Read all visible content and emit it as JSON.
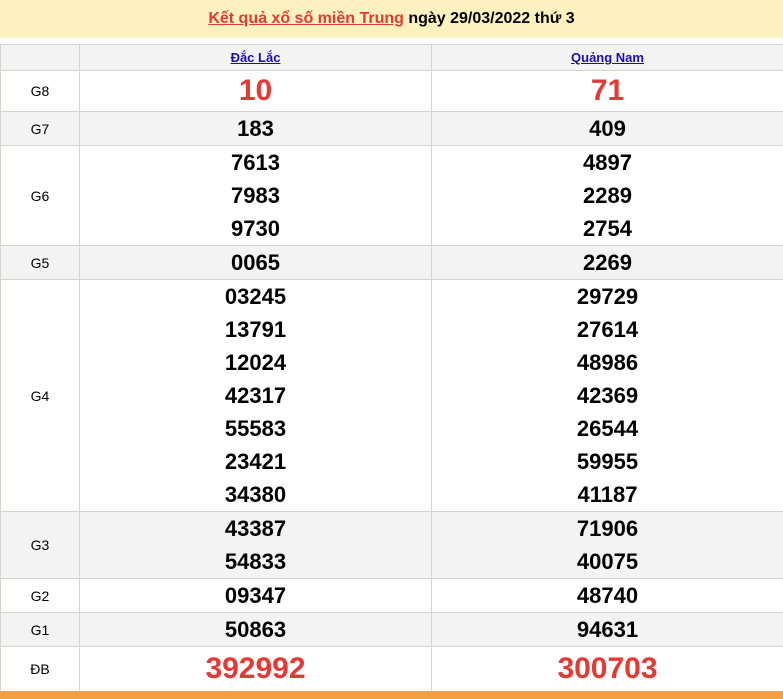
{
  "title": {
    "link": "Kết quả xổ số miền Trung",
    "rest": " ngày 29/03/2022 thứ 3"
  },
  "columns": [
    "Đắc Lắc",
    "Quảng Nam"
  ],
  "rows": [
    {
      "label": "G8",
      "big": true,
      "alt": false,
      "cols": [
        [
          "10"
        ],
        [
          "71"
        ]
      ]
    },
    {
      "label": "G7",
      "alt": true,
      "cols": [
        [
          "183"
        ],
        [
          "409"
        ]
      ]
    },
    {
      "label": "G6",
      "alt": false,
      "cols": [
        [
          "7613",
          "7983",
          "9730"
        ],
        [
          "4897",
          "2289",
          "2754"
        ]
      ]
    },
    {
      "label": "G5",
      "alt": true,
      "cols": [
        [
          "0065"
        ],
        [
          "2269"
        ]
      ]
    },
    {
      "label": "G4",
      "alt": false,
      "cols": [
        [
          "03245",
          "13791",
          "12024",
          "42317",
          "55583",
          "23421",
          "34380"
        ],
        [
          "29729",
          "27614",
          "48986",
          "42369",
          "26544",
          "59955",
          "41187"
        ]
      ]
    },
    {
      "label": "G3",
      "alt": true,
      "cols": [
        [
          "43387",
          "54833"
        ],
        [
          "71906",
          "40075"
        ]
      ]
    },
    {
      "label": "G2",
      "alt": false,
      "cols": [
        [
          "09347"
        ],
        [
          "48740"
        ]
      ]
    },
    {
      "label": "G1",
      "alt": true,
      "cols": [
        [
          "50863"
        ],
        [
          "94631"
        ]
      ]
    },
    {
      "label": "ĐB",
      "big": true,
      "alt": false,
      "cols": [
        [
          "392992"
        ],
        [
          "300703"
        ]
      ]
    }
  ],
  "colors": {
    "accent": "#e53935",
    "header_bg": "#fdf1c0",
    "footer": "#f4a040"
  }
}
